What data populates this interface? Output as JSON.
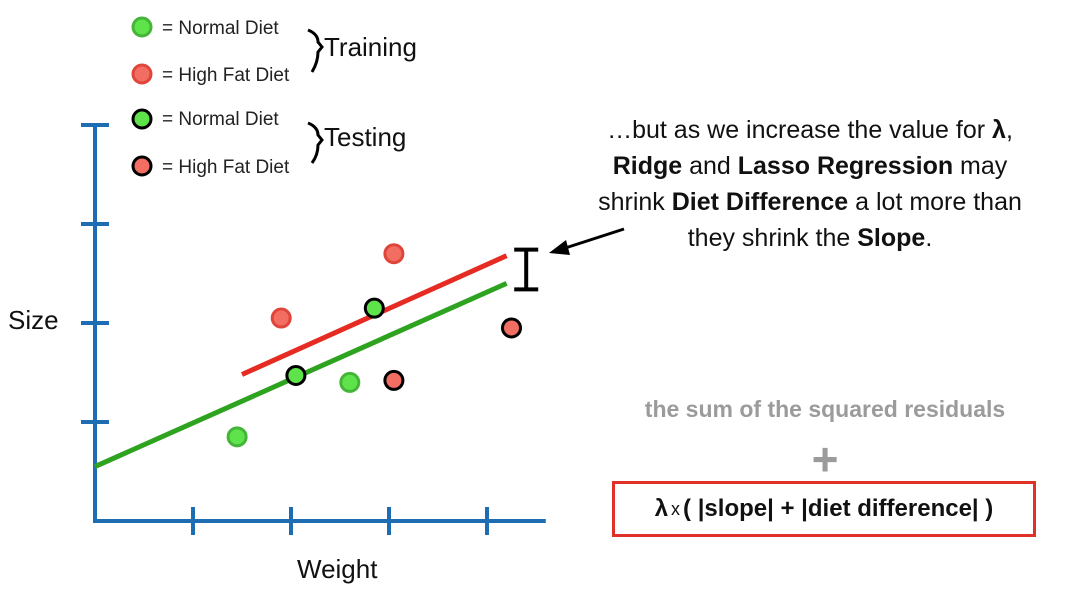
{
  "chart_data": {
    "type": "scatter",
    "xlabel": "Weight",
    "ylabel": "Size",
    "xlim": [
      0,
      4.6
    ],
    "ylim": [
      0,
      4
    ],
    "x_ticks": [
      1,
      2,
      3,
      4
    ],
    "y_ticks": [
      1,
      2,
      3
    ],
    "legend": {
      "groups": [
        {
          "label": "Training",
          "entries": [
            {
              "label": "= Normal Diet",
              "fill": "#5fe34a",
              "edge": "#45b53a"
            },
            {
              "label": "= High Fat Diet",
              "fill": "#f26e63",
              "edge": "#e0453a"
            }
          ]
        },
        {
          "label": "Testing",
          "entries": [
            {
              "label": "= Normal Diet",
              "fill": "#5fe34a",
              "edge": "#000000"
            },
            {
              "label": "= High Fat Diet",
              "fill": "#f26e63",
              "edge": "#000000"
            }
          ]
        }
      ]
    },
    "series": [
      {
        "diet": "normal",
        "set": "training",
        "fill": "#5fe34a",
        "edge": "#45b53a",
        "points": [
          [
            1.45,
            0.85
          ],
          [
            2.6,
            1.4
          ]
        ]
      },
      {
        "diet": "high_fat",
        "set": "training",
        "fill": "#f26e63",
        "edge": "#e0453a",
        "points": [
          [
            1.9,
            2.05
          ],
          [
            3.05,
            2.7
          ]
        ]
      },
      {
        "diet": "normal",
        "set": "testing",
        "fill": "#5fe34a",
        "edge": "#000000",
        "points": [
          [
            2.05,
            1.47
          ],
          [
            2.85,
            2.15
          ]
        ]
      },
      {
        "diet": "high_fat",
        "set": "testing",
        "fill": "#f26e63",
        "edge": "#000000",
        "points": [
          [
            3.05,
            1.42
          ],
          [
            4.25,
            1.95
          ]
        ]
      }
    ],
    "lines": [
      {
        "diet": "normal",
        "color": "#2ea31f",
        "x": [
          0,
          4.2
        ],
        "y": [
          0.55,
          2.4
        ]
      },
      {
        "diet": "high_fat",
        "color": "#e52b22",
        "x": [
          1.5,
          4.2
        ],
        "y": [
          1.48,
          2.68
        ]
      }
    ],
    "axis_color": "#1e6db3",
    "difference_marker_x": 4.4
  },
  "annotation": {
    "l1a": "…but as we increase the value for ",
    "l1b": "λ",
    "l1c": ",",
    "l2a": "Ridge",
    "l2b": " and ",
    "l2c": "Lasso Regression",
    "l2d": " may",
    "l3a": "shrink ",
    "l3b": "Diet Difference",
    "l3c": " a lot more than",
    "l4a": "they shrink the ",
    "l4b": "Slope",
    "l4c": "."
  },
  "formula": {
    "sum_text": "the sum of the squared residuals",
    "plus": "+",
    "lambda": "λ",
    "times": "x",
    "expression": "( |slope| + |diet difference| )"
  }
}
